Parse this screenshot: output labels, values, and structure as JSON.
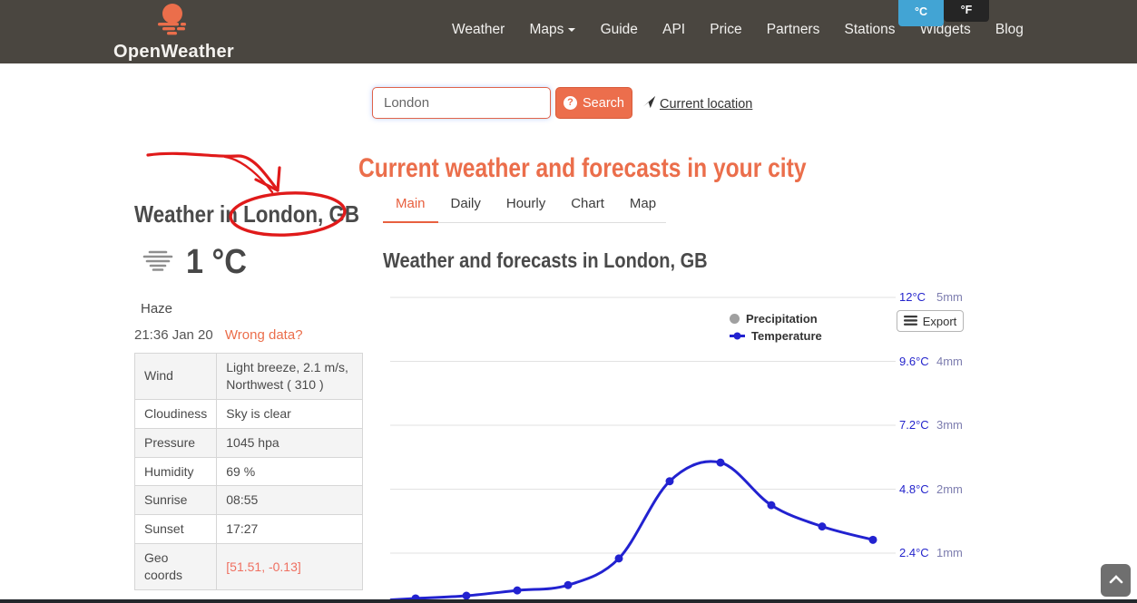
{
  "header": {
    "brand": "OpenWeather",
    "nav_items": [
      "Weather",
      "Maps",
      "Guide",
      "API",
      "Price",
      "Partners",
      "Stations",
      "Widgets",
      "Blog"
    ],
    "unit_celsius": "°C",
    "unit_fahrenheit": "°F"
  },
  "search": {
    "value": "London",
    "button_label": "Search",
    "current_location_label": "Current location"
  },
  "left_panel": {
    "title": "Weather in London, GB",
    "temperature": "1 °C",
    "condition": "Haze",
    "timestamp": "21:36 Jan 20",
    "wrong_data_label": "Wrong data?",
    "details": [
      {
        "label": "Wind",
        "value": "Light breeze, 2.1 m/s,\nNorthwest ( 310 )"
      },
      {
        "label": "Cloudiness",
        "value": "Sky is clear"
      },
      {
        "label": "Pressure",
        "value": "1045 hpa"
      },
      {
        "label": "Humidity",
        "value": "69 %"
      },
      {
        "label": "Sunrise",
        "value": "08:55"
      },
      {
        "label": "Sunset",
        "value": "17:27"
      },
      {
        "label": "Geo coords",
        "value": "[51.51, -0.13]"
      }
    ]
  },
  "main_panel": {
    "heading": "Current weather and forecasts in your city",
    "tabs": [
      {
        "label": "Main",
        "active": true
      },
      {
        "label": "Daily",
        "active": false
      },
      {
        "label": "Hourly",
        "active": false
      },
      {
        "label": "Chart",
        "active": false
      },
      {
        "label": "Map",
        "active": false
      }
    ],
    "subheading": "Weather and forecasts in London, GB",
    "export_label": "Export",
    "legend": {
      "precipitation": "Precipitation",
      "temperature": "Temperature"
    }
  },
  "chart_data": {
    "type": "line",
    "title": "Weather and forecasts in London, GB",
    "x_labels_visible": false,
    "series": [
      {
        "name": "Precipitation",
        "type": "bar",
        "unit": "mm",
        "color": "#a0a0a0",
        "values": [
          0,
          0,
          0,
          0,
          0,
          0,
          0,
          0,
          0,
          0
        ]
      },
      {
        "name": "Temperature",
        "type": "line",
        "unit": "°C",
        "color": "#2222d0",
        "values": [
          0.7,
          0.8,
          1.0,
          1.2,
          2.2,
          5.1,
          5.8,
          4.2,
          3.4,
          2.9
        ]
      }
    ],
    "right_axis_temperature": {
      "ticks": [
        2.4,
        4.8,
        7.2,
        9.6,
        12
      ],
      "tick_labels": [
        "2.4°C",
        "4.8°C",
        "7.2°C",
        "9.6°C",
        "12°C"
      ],
      "label_color": "#2424cc"
    },
    "right_axis_precipitation": {
      "ticks": [
        1,
        2,
        3,
        4,
        5
      ],
      "tick_labels": [
        "1mm",
        "2mm",
        "3mm",
        "4mm",
        "5mm"
      ],
      "label_color": "#7d7daf"
    },
    "grid": true,
    "grid_color": "#e2e2e2",
    "legend_position": "top-right"
  }
}
